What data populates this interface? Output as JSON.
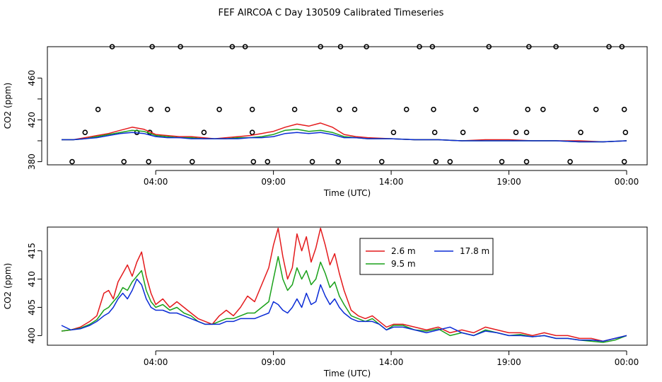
{
  "title": "FEF AIRCOA C  Day 130509  Calibrated Timeseries",
  "chart_data": [
    {
      "type": "line",
      "panel": "top",
      "xlabel": "Time (UTC)",
      "ylabel": "CO2 (ppm)",
      "xlim": [
        0,
        24
      ],
      "ylim": [
        377,
        490
      ],
      "x_ticks": [
        {
          "value": 4,
          "label": "04:00"
        },
        {
          "value": 9,
          "label": "09:00"
        },
        {
          "value": 14,
          "label": "14:00"
        },
        {
          "value": 19,
          "label": "19:00"
        },
        {
          "value": 24,
          "label": "00:00"
        }
      ],
      "y_ticks": [
        {
          "value": 380,
          "label": "380"
        },
        {
          "value": 420,
          "label": "420"
        },
        {
          "value": 460,
          "label": "460"
        }
      ],
      "y_tick_marks": [
        380,
        400,
        420,
        440,
        460
      ],
      "calibration_markers": [
        {
          "y": 380,
          "x": [
            0.45,
            2.65,
            3.7,
            5.55,
            8.15,
            8.75,
            10.65,
            11.75,
            13.6,
            15.9,
            16.5,
            18.7,
            19.75,
            21.6,
            23.9
          ]
        },
        {
          "y": 408,
          "x": [
            1.0,
            3.2,
            3.75,
            6.05,
            8.1,
            14.1,
            15.85,
            17.05,
            19.3,
            19.75,
            22.05,
            23.95
          ]
        },
        {
          "y": 430,
          "x": [
            1.55,
            3.8,
            4.5,
            6.7,
            8.1,
            9.9,
            11.8,
            12.45,
            14.65,
            15.8,
            17.6,
            19.8,
            20.45,
            22.7,
            23.9
          ]
        },
        {
          "y": 490,
          "x": [
            2.15,
            3.85,
            5.05,
            7.25,
            7.8,
            11.0,
            11.85,
            12.95,
            15.2,
            15.75,
            18.15,
            19.85,
            21.0,
            23.25,
            23.8
          ]
        }
      ],
      "series": [
        {
          "name": "2.6 m",
          "color": "#e41a1c",
          "x": [
            0,
            0.5,
            1,
            1.5,
            2,
            2.5,
            3,
            3.5,
            4,
            4.5,
            5,
            5.5,
            6,
            6.5,
            7,
            7.5,
            8,
            8.5,
            9,
            9.5,
            10,
            10.5,
            11,
            11.5,
            12,
            12.5,
            13,
            14,
            15,
            16,
            17,
            18,
            19,
            20,
            21,
            22,
            23,
            24
          ],
          "values": [
            401,
            401,
            403,
            405,
            407,
            410,
            413,
            411,
            406,
            405,
            404,
            404,
            403,
            402,
            403,
            404,
            405,
            407,
            409,
            413,
            416,
            414,
            417,
            413,
            406,
            404,
            403,
            402,
            401,
            401,
            400,
            401,
            401,
            400,
            400,
            400,
            399,
            400
          ]
        },
        {
          "name": "9.5 m",
          "color": "#1aa11a",
          "x": [
            0,
            0.5,
            1,
            1.5,
            2,
            2.5,
            3,
            3.5,
            4,
            4.5,
            5,
            5.5,
            6,
            6.5,
            7,
            7.5,
            8,
            8.5,
            9,
            9.5,
            10,
            10.5,
            11,
            11.5,
            12,
            12.5,
            13,
            14,
            15,
            16,
            17,
            18,
            19,
            20,
            21,
            22,
            23,
            24
          ],
          "values": [
            401,
            401,
            402,
            404,
            406,
            408,
            410,
            409,
            405,
            404,
            403,
            403,
            402,
            402,
            402,
            403,
            403,
            404,
            406,
            410,
            411,
            409,
            410,
            408,
            404,
            403,
            402,
            402,
            401,
            401,
            400,
            400,
            400,
            400,
            400,
            399,
            399,
            400
          ]
        },
        {
          "name": "17.8 m",
          "color": "#0a2bd6",
          "x": [
            0,
            0.5,
            1,
            1.5,
            2,
            2.5,
            3,
            3.5,
            4,
            4.5,
            5,
            5.5,
            6,
            6.5,
            7,
            7.5,
            8,
            8.5,
            9,
            9.5,
            10,
            10.5,
            11,
            11.5,
            12,
            12.5,
            13,
            14,
            15,
            16,
            17,
            18,
            19,
            20,
            21,
            22,
            23,
            24
          ],
          "values": [
            401,
            401,
            402,
            403,
            405,
            407,
            408,
            407,
            404,
            403,
            403,
            402,
            402,
            402,
            402,
            402,
            403,
            403,
            404,
            407,
            408,
            407,
            408,
            406,
            403,
            403,
            402,
            402,
            401,
            401,
            400,
            400,
            400,
            400,
            400,
            399,
            399,
            400
          ]
        }
      ]
    },
    {
      "type": "line",
      "panel": "bottom",
      "xlabel": "Time (UTC)",
      "ylabel": "CO2 (ppm)",
      "xlim": [
        0,
        24
      ],
      "ylim": [
        398.3,
        419.2
      ],
      "x_ticks": [
        {
          "value": 4,
          "label": "04:00"
        },
        {
          "value": 9,
          "label": "09:00"
        },
        {
          "value": 14,
          "label": "14:00"
        },
        {
          "value": 19,
          "label": "19:00"
        },
        {
          "value": 24,
          "label": "00:00"
        }
      ],
      "y_ticks": [
        {
          "value": 400,
          "label": "400"
        },
        {
          "value": 405,
          "label": "405"
        },
        {
          "value": 410,
          "label": "410"
        },
        {
          "value": 415,
          "label": "415"
        }
      ],
      "legend": {
        "position": "top-center",
        "entries": [
          "2.6 m",
          "9.5 m",
          "17.8 m"
        ]
      },
      "series": [
        {
          "name": "2.6 m",
          "color": "#e41a1c",
          "x": [
            0,
            0.4,
            0.8,
            1.2,
            1.5,
            1.8,
            2.0,
            2.2,
            2.4,
            2.6,
            2.8,
            3.0,
            3.2,
            3.4,
            3.6,
            3.8,
            4.0,
            4.3,
            4.6,
            4.9,
            5.2,
            5.5,
            5.8,
            6.1,
            6.4,
            6.7,
            7.0,
            7.3,
            7.6,
            7.9,
            8.2,
            8.5,
            8.8,
            9.0,
            9.2,
            9.4,
            9.6,
            9.8,
            10.0,
            10.2,
            10.4,
            10.6,
            10.8,
            11.0,
            11.2,
            11.4,
            11.6,
            11.8,
            12.0,
            12.3,
            12.6,
            12.9,
            13.2,
            13.5,
            13.8,
            14.1,
            14.5,
            15.0,
            15.5,
            16.0,
            16.5,
            17.0,
            17.5,
            18.0,
            18.5,
            19.0,
            19.5,
            20.0,
            20.5,
            21.0,
            21.5,
            22.0,
            22.5,
            23.0,
            23.5,
            24.0
          ],
          "values": [
            400.8,
            401.0,
            401.5,
            402.5,
            403.5,
            407.5,
            408.0,
            406.5,
            409.5,
            411.0,
            412.5,
            410.5,
            413.0,
            414.8,
            410.5,
            407.5,
            405.5,
            406.5,
            405.0,
            406.0,
            405.0,
            404.0,
            403.0,
            402.5,
            402.0,
            403.5,
            404.5,
            403.5,
            405.0,
            407.0,
            406.0,
            409.0,
            412.0,
            416.0,
            419.0,
            414.0,
            410.0,
            412.0,
            418.0,
            415.0,
            417.5,
            413.0,
            415.5,
            419.0,
            416.0,
            412.5,
            414.5,
            411.0,
            408.0,
            404.5,
            403.5,
            403.0,
            403.5,
            402.5,
            401.5,
            402.0,
            402.0,
            401.5,
            401.0,
            401.5,
            400.5,
            401.0,
            400.5,
            401.5,
            401.0,
            400.5,
            400.5,
            400.0,
            400.5,
            400.0,
            400.0,
            399.5,
            399.5,
            399.0,
            399.5,
            400.0
          ]
        },
        {
          "name": "9.5 m",
          "color": "#1aa11a",
          "x": [
            0,
            0.4,
            0.8,
            1.2,
            1.5,
            1.8,
            2.0,
            2.2,
            2.4,
            2.6,
            2.8,
            3.0,
            3.2,
            3.4,
            3.6,
            3.8,
            4.0,
            4.3,
            4.6,
            4.9,
            5.2,
            5.5,
            5.8,
            6.1,
            6.4,
            6.7,
            7.0,
            7.3,
            7.6,
            7.9,
            8.2,
            8.5,
            8.8,
            9.0,
            9.2,
            9.4,
            9.6,
            9.8,
            10.0,
            10.2,
            10.4,
            10.6,
            10.8,
            11.0,
            11.2,
            11.4,
            11.6,
            11.8,
            12.0,
            12.3,
            12.6,
            12.9,
            13.2,
            13.5,
            13.8,
            14.1,
            14.5,
            15.0,
            15.5,
            16.0,
            16.5,
            17.0,
            17.5,
            18.0,
            18.5,
            19.0,
            19.5,
            20.0,
            20.5,
            21.0,
            21.5,
            22.0,
            22.5,
            23.0,
            23.5,
            24.0
          ],
          "values": [
            400.8,
            401.0,
            401.3,
            402.0,
            402.8,
            404.5,
            405.0,
            406.0,
            407.0,
            408.5,
            408.0,
            409.5,
            410.5,
            411.5,
            408.0,
            406.0,
            405.0,
            405.5,
            404.5,
            405.0,
            404.0,
            403.5,
            402.5,
            402.0,
            402.0,
            402.5,
            403.0,
            403.0,
            403.5,
            404.0,
            404.0,
            405.0,
            406.0,
            410.0,
            414.0,
            410.0,
            408.0,
            409.0,
            412.0,
            410.0,
            411.5,
            409.0,
            410.0,
            413.0,
            411.0,
            408.5,
            409.5,
            407.0,
            405.5,
            403.5,
            403.0,
            402.5,
            403.0,
            402.0,
            401.0,
            401.8,
            401.8,
            401.0,
            400.8,
            401.2,
            400.0,
            400.5,
            400.0,
            401.0,
            400.5,
            400.0,
            400.2,
            399.8,
            400.0,
            399.5,
            399.5,
            399.2,
            399.0,
            398.8,
            399.2,
            400.0
          ]
        },
        {
          "name": "17.8 m",
          "color": "#0a2bd6",
          "x": [
            0,
            0.4,
            0.8,
            1.2,
            1.5,
            1.8,
            2.0,
            2.2,
            2.4,
            2.6,
            2.8,
            3.0,
            3.2,
            3.4,
            3.6,
            3.8,
            4.0,
            4.3,
            4.6,
            4.9,
            5.2,
            5.5,
            5.8,
            6.1,
            6.4,
            6.7,
            7.0,
            7.3,
            7.6,
            7.9,
            8.2,
            8.5,
            8.8,
            9.0,
            9.2,
            9.4,
            9.6,
            9.8,
            10.0,
            10.2,
            10.4,
            10.6,
            10.8,
            11.0,
            11.2,
            11.4,
            11.6,
            11.8,
            12.0,
            12.3,
            12.6,
            12.9,
            13.2,
            13.5,
            13.8,
            14.1,
            14.5,
            15.0,
            15.5,
            16.0,
            16.5,
            17.0,
            17.5,
            18.0,
            18.5,
            19.0,
            19.5,
            20.0,
            20.5,
            21.0,
            21.5,
            22.0,
            22.5,
            23.0,
            23.5,
            24.0
          ],
          "values": [
            401.8,
            401.0,
            401.2,
            401.8,
            402.5,
            403.5,
            404.0,
            405.0,
            406.5,
            407.5,
            406.5,
            408.0,
            410.0,
            409.0,
            406.5,
            405.0,
            404.5,
            404.5,
            404.0,
            404.0,
            403.5,
            403.0,
            402.5,
            402.0,
            402.0,
            402.0,
            402.5,
            402.5,
            403.0,
            403.0,
            403.0,
            403.5,
            404.0,
            406.0,
            405.5,
            404.5,
            404.0,
            405.0,
            406.5,
            405.0,
            407.5,
            405.5,
            406.0,
            409.0,
            407.0,
            405.5,
            406.5,
            405.0,
            404.0,
            403.0,
            402.5,
            402.5,
            402.5,
            402.0,
            401.0,
            401.5,
            401.5,
            401.0,
            400.5,
            401.0,
            401.5,
            400.5,
            400.0,
            400.8,
            400.5,
            400.0,
            400.0,
            399.8,
            400.0,
            399.5,
            399.5,
            399.2,
            399.2,
            399.0,
            399.5,
            400.0
          ]
        }
      ]
    }
  ]
}
